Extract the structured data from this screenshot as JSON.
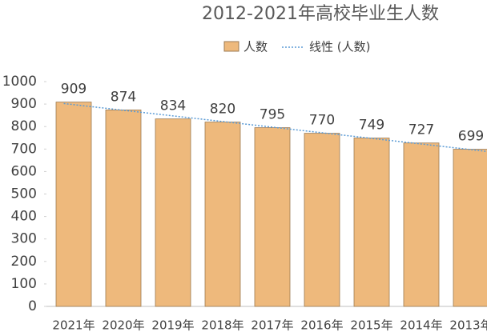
{
  "chart_data": {
    "type": "bar",
    "title": "2012-2021年高校毕业生人数",
    "categories": [
      "2021年",
      "2020年",
      "2019年",
      "2018年",
      "2017年",
      "2016年",
      "2015年",
      "2014年",
      "2013年"
    ],
    "series": [
      {
        "name": "人数",
        "color": "#eeb97c",
        "values": [
          909,
          874,
          834,
          820,
          795,
          770,
          749,
          727,
          699
        ]
      }
    ],
    "trendline": {
      "name": "线性 (人数)",
      "color": "#5b9bd5"
    },
    "ylim": [
      0,
      1000
    ],
    "yticks": [
      0,
      100,
      200,
      300,
      400,
      500,
      600,
      700,
      800,
      900,
      1000
    ]
  }
}
